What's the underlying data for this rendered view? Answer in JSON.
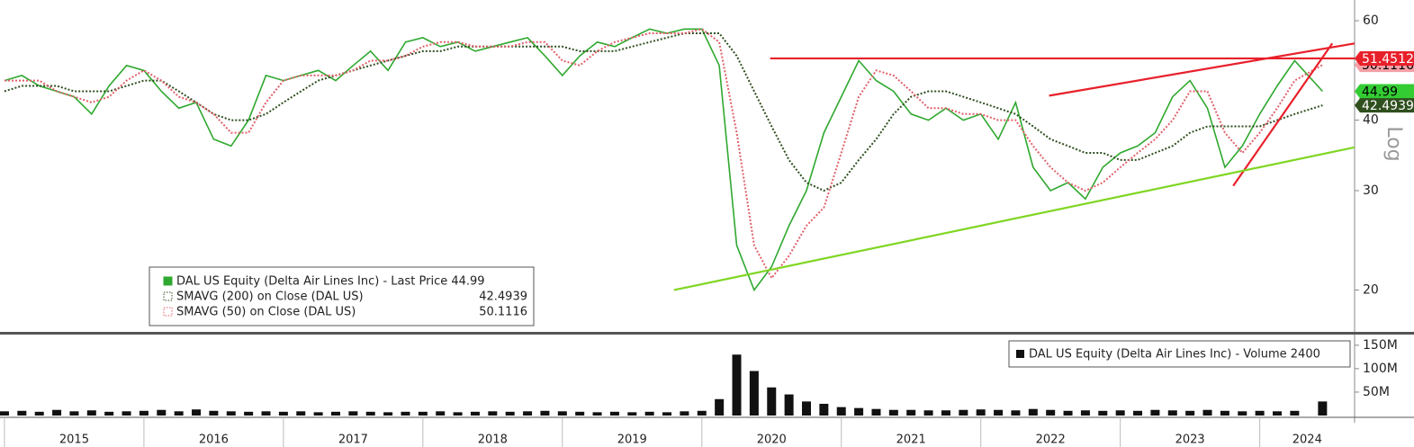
{
  "chart_data": [
    {
      "type": "line",
      "log": true,
      "ylim": [
        16.8,
        65.3
      ],
      "yticks": [
        20,
        30,
        40,
        60
      ],
      "xlim": [
        2014.968,
        2024.68
      ],
      "y_label": "Log",
      "x": [
        2015,
        2015.125,
        2015.25,
        2015.375,
        2015.5,
        2015.625,
        2015.75,
        2015.875,
        2016,
        2016.125,
        2016.25,
        2016.375,
        2016.5,
        2016.625,
        2016.75,
        2016.875,
        2017,
        2017.125,
        2017.25,
        2017.375,
        2017.5,
        2017.625,
        2017.75,
        2017.875,
        2018,
        2018.125,
        2018.25,
        2018.375,
        2018.5,
        2018.625,
        2018.75,
        2018.875,
        2019,
        2019.125,
        2019.25,
        2019.375,
        2019.5,
        2019.625,
        2019.75,
        2019.875,
        2020,
        2020.125,
        2020.25,
        2020.375,
        2020.5,
        2020.625,
        2020.75,
        2020.875,
        2021,
        2021.125,
        2021.25,
        2021.375,
        2021.5,
        2021.625,
        2021.75,
        2021.875,
        2022,
        2022.125,
        2022.25,
        2022.375,
        2022.5,
        2022.625,
        2022.75,
        2022.875,
        2023,
        2023.125,
        2023.25,
        2023.375,
        2023.5,
        2023.625,
        2023.75,
        2023.875,
        2024,
        2024.125,
        2024.25,
        2024.45
      ],
      "series": [
        {
          "name": "DAL US Equity (Delta Air Lines Inc) - Last Price 44.99",
          "color": "#2fa82f",
          "style": "solid",
          "values": [
            47,
            48,
            46,
            45,
            44,
            41,
            46,
            50,
            49,
            45,
            42,
            43,
            37,
            36,
            40,
            48,
            47,
            48,
            49,
            47,
            50,
            53,
            49,
            55,
            56,
            54,
            55,
            53,
            54,
            55,
            56,
            52,
            48,
            52,
            55,
            54,
            56,
            58,
            57,
            58,
            58,
            50,
            24,
            20,
            22,
            26,
            30,
            38,
            44,
            51,
            47,
            45,
            41,
            40,
            42,
            40,
            41,
            37,
            43,
            33,
            30,
            31,
            29,
            33,
            35,
            36,
            38,
            44,
            47,
            42,
            33,
            36,
            41,
            46,
            51,
            44.99
          ]
        },
        {
          "name": "SMAVG (200)  on Close (DAL US)",
          "legend_value": "42.4939",
          "color": "#2f4f1f",
          "style": "dotted",
          "values": [
            45,
            46,
            46,
            46,
            45,
            45,
            45,
            46,
            47,
            47,
            45,
            43,
            41,
            40,
            40,
            41,
            43,
            45,
            47,
            48,
            49,
            50,
            51,
            52,
            53,
            53,
            54,
            54,
            54,
            54,
            54,
            54,
            54,
            53,
            53,
            53,
            54,
            55,
            56,
            57,
            57,
            57,
            52,
            45,
            39,
            34,
            31,
            30,
            31,
            34,
            37,
            41,
            44,
            45,
            45,
            44,
            43,
            42,
            41,
            39,
            37,
            36,
            35,
            35,
            34,
            34,
            35,
            36,
            38,
            39,
            39,
            39,
            39,
            40,
            41,
            42.4939
          ]
        },
        {
          "name": "SMAVG (50)  on Close (DAL US)",
          "legend_value": "50.1116",
          "color": "#e0606a",
          "style": "dotted",
          "values": [
            47,
            47,
            47,
            45,
            44,
            43,
            44,
            47,
            49,
            47,
            44,
            43,
            41,
            38,
            38,
            43,
            47,
            48,
            48,
            48,
            49,
            51,
            51,
            52,
            54,
            55,
            55,
            54,
            54,
            54,
            55,
            55,
            51,
            50,
            53,
            55,
            56,
            57,
            57,
            57,
            58,
            55,
            38,
            24,
            21,
            23,
            26,
            28,
            35,
            44,
            49,
            48,
            45,
            42,
            42,
            41,
            41,
            40,
            40,
            36,
            33,
            31,
            30,
            31,
            33,
            35,
            37,
            40,
            45,
            45,
            38,
            35,
            38,
            42,
            47,
            50.1116
          ]
        }
      ],
      "trendlines": [
        {
          "color": "#e8202a",
          "x": [
            2020.49,
            2024.68
          ],
          "values": [
            51.4512,
            51.4512
          ]
        },
        {
          "color": "#e8202a",
          "x": [
            2022.49,
            2024.68
          ],
          "values": [
            44.2,
            54.7
          ]
        },
        {
          "color": "#e8202a",
          "x": [
            2023.81,
            2024.52
          ],
          "values": [
            30.6,
            54.7
          ]
        },
        {
          "color": "#7fd622",
          "x": [
            2019.8,
            2024.68
          ],
          "values": [
            20,
            35.8
          ]
        }
      ],
      "price_tags": [
        {
          "value": 50.1116,
          "label": "50.1116",
          "color": "#f4a0a6"
        },
        {
          "value": 51.4512,
          "label": "51.4512",
          "color": "#e8202a"
        },
        {
          "value": 44.99,
          "label": "44.99",
          "color": "#33cc33"
        },
        {
          "value": 42.4939,
          "label": "42.4939",
          "color": "#2f4f1f"
        }
      ]
    },
    {
      "type": "bar",
      "ylim": [
        0,
        167
      ],
      "xlim": [
        2014.968,
        2024.68
      ],
      "yticks": [
        {
          "value": 50,
          "label": "50M"
        },
        {
          "value": 100,
          "label": "100M"
        },
        {
          "value": 150,
          "label": "150M"
        }
      ],
      "xticks": [
        {
          "value": 2015,
          "label": "2015"
        },
        {
          "value": 2016,
          "label": "2016"
        },
        {
          "value": 2017,
          "label": "2017"
        },
        {
          "value": 2018,
          "label": "2018"
        },
        {
          "value": 2019,
          "label": "2019"
        },
        {
          "value": 2020,
          "label": "2020"
        },
        {
          "value": 2021,
          "label": "2021"
        },
        {
          "value": 2022,
          "label": "2022"
        },
        {
          "value": 2023,
          "label": "2023"
        },
        {
          "value": 2024,
          "label": "2024"
        }
      ],
      "x": [
        2015,
        2015.125,
        2015.25,
        2015.375,
        2015.5,
        2015.625,
        2015.75,
        2015.875,
        2016,
        2016.125,
        2016.25,
        2016.375,
        2016.5,
        2016.625,
        2016.75,
        2016.875,
        2017,
        2017.125,
        2017.25,
        2017.375,
        2017.5,
        2017.625,
        2017.75,
        2017.875,
        2018,
        2018.125,
        2018.25,
        2018.375,
        2018.5,
        2018.625,
        2018.75,
        2018.875,
        2019,
        2019.125,
        2019.25,
        2019.375,
        2019.5,
        2019.625,
        2019.75,
        2019.875,
        2020,
        2020.125,
        2020.25,
        2020.375,
        2020.5,
        2020.625,
        2020.75,
        2020.875,
        2021,
        2021.125,
        2021.25,
        2021.375,
        2021.5,
        2021.625,
        2021.75,
        2021.875,
        2022,
        2022.125,
        2022.25,
        2022.375,
        2022.5,
        2022.625,
        2022.75,
        2022.875,
        2023,
        2023.125,
        2023.25,
        2023.375,
        2023.5,
        2023.625,
        2023.75,
        2023.875,
        2024,
        2024.125,
        2024.25,
        2024.45
      ],
      "series": [
        {
          "name": "DAL US Equity (Delta Air Lines Inc) - Volume 2400",
          "color": "#111111",
          "values": [
            9,
            10,
            8,
            12,
            9,
            11,
            8,
            9,
            10,
            12,
            9,
            13,
            10,
            9,
            8,
            9,
            8,
            9,
            7,
            8,
            9,
            8,
            7,
            8,
            8,
            9,
            7,
            8,
            9,
            8,
            9,
            10,
            9,
            8,
            7,
            8,
            7,
            8,
            7,
            9,
            10,
            35,
            130,
            95,
            60,
            45,
            30,
            25,
            18,
            16,
            14,
            12,
            12,
            11,
            11,
            12,
            13,
            12,
            11,
            14,
            12,
            10,
            11,
            10,
            11,
            10,
            12,
            11,
            10,
            12,
            10,
            9,
            10,
            9,
            10,
            30
          ]
        }
      ]
    }
  ]
}
